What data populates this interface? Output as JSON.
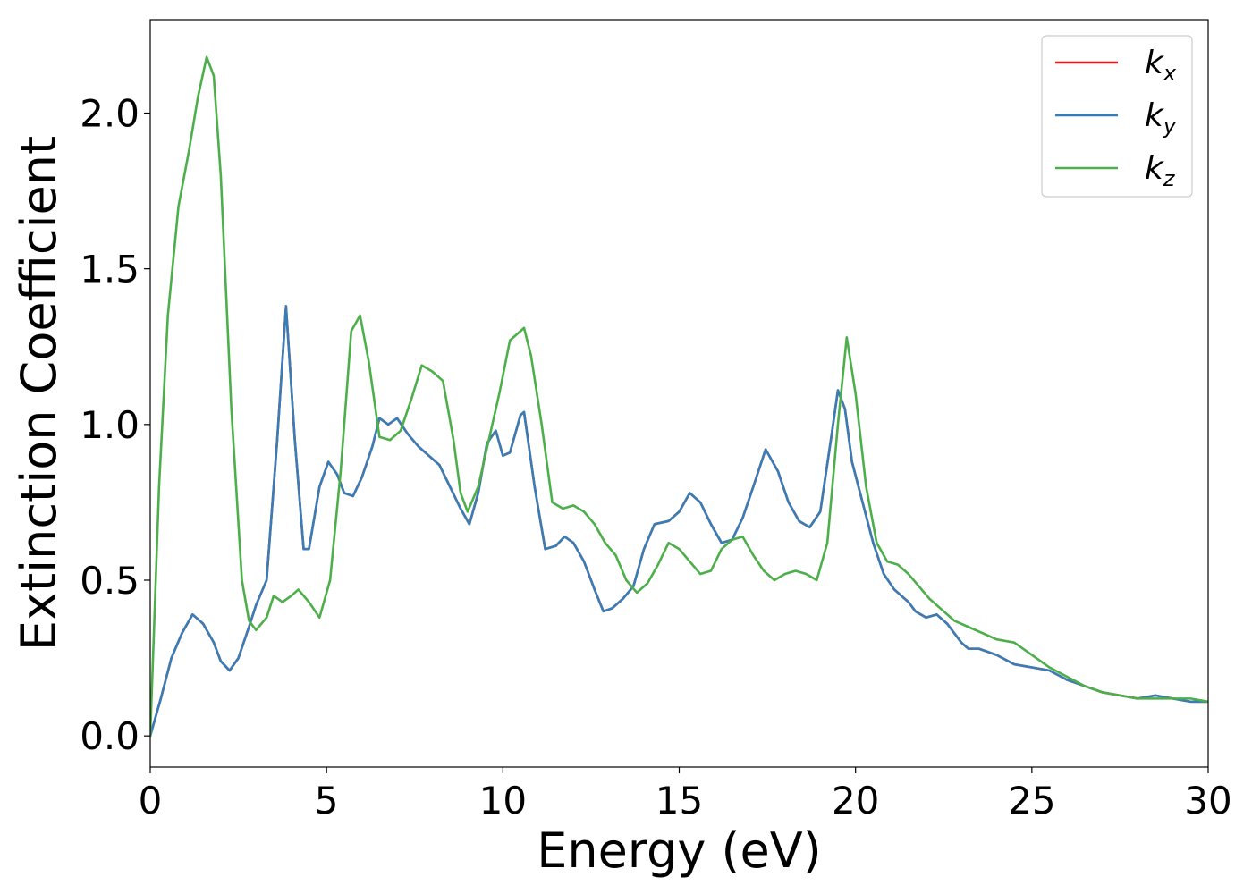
{
  "chart_data": {
    "type": "line",
    "title": "",
    "xlabel": "Energy (eV)",
    "ylabel": "Extinction Coefficient",
    "xlim": [
      0,
      30
    ],
    "ylim": [
      -0.1,
      2.3
    ],
    "xticks": [
      0,
      5,
      10,
      15,
      20,
      25,
      30
    ],
    "xtick_labels": [
      "0",
      "5",
      "10",
      "15",
      "20",
      "25",
      "30"
    ],
    "yticks": [
      0.0,
      0.5,
      1.0,
      1.5,
      2.0
    ],
    "ytick_labels": [
      "0.0",
      "0.5",
      "1.0",
      "1.5",
      "2.0"
    ],
    "grid": false,
    "legend_position": "top-right",
    "series": [
      {
        "name": "k_x",
        "label_base": "k",
        "label_sub": "x",
        "color": "#e41a1c",
        "x": [
          0,
          0.3,
          0.6,
          0.9,
          1.2,
          1.5,
          1.8,
          2.0,
          2.25,
          2.5,
          2.8,
          3.0,
          3.3,
          3.6,
          3.85,
          4.1,
          4.35,
          4.5,
          4.8,
          5.05,
          5.3,
          5.5,
          5.75,
          6.0,
          6.3,
          6.5,
          6.75,
          7.0,
          7.3,
          7.6,
          7.9,
          8.2,
          8.5,
          8.8,
          9.05,
          9.3,
          9.55,
          9.8,
          10.0,
          10.2,
          10.5,
          10.6,
          10.9,
          11.2,
          11.5,
          11.75,
          12.0,
          12.3,
          12.6,
          12.85,
          13.1,
          13.4,
          13.7,
          14.0,
          14.3,
          14.7,
          15.0,
          15.3,
          15.6,
          15.9,
          16.2,
          16.5,
          16.8,
          17.1,
          17.45,
          17.8,
          18.1,
          18.4,
          18.7,
          19.0,
          19.3,
          19.5,
          19.7,
          19.9,
          20.2,
          20.5,
          20.8,
          21.1,
          21.5,
          21.7,
          22.0,
          22.3,
          22.6,
          23.0,
          23.2,
          23.5,
          24.0,
          24.5,
          25.0,
          25.5,
          26.0,
          26.5,
          27.0,
          27.5,
          28.0,
          28.5,
          29.0,
          29.5,
          30.0
        ],
        "y": [
          0.0,
          0.12,
          0.25,
          0.33,
          0.39,
          0.36,
          0.3,
          0.24,
          0.21,
          0.25,
          0.35,
          0.42,
          0.5,
          0.95,
          1.38,
          0.95,
          0.6,
          0.6,
          0.8,
          0.88,
          0.84,
          0.78,
          0.77,
          0.83,
          0.93,
          1.02,
          1.0,
          1.02,
          0.97,
          0.93,
          0.9,
          0.87,
          0.8,
          0.73,
          0.68,
          0.78,
          0.94,
          0.98,
          0.9,
          0.91,
          1.03,
          1.04,
          0.8,
          0.6,
          0.61,
          0.64,
          0.62,
          0.56,
          0.47,
          0.4,
          0.41,
          0.44,
          0.48,
          0.6,
          0.68,
          0.69,
          0.72,
          0.78,
          0.75,
          0.68,
          0.62,
          0.63,
          0.7,
          0.8,
          0.92,
          0.85,
          0.75,
          0.69,
          0.67,
          0.72,
          0.95,
          1.11,
          1.05,
          0.88,
          0.75,
          0.62,
          0.52,
          0.47,
          0.43,
          0.4,
          0.38,
          0.39,
          0.36,
          0.3,
          0.28,
          0.28,
          0.26,
          0.23,
          0.22,
          0.21,
          0.18,
          0.16,
          0.14,
          0.13,
          0.12,
          0.13,
          0.12,
          0.11,
          0.11
        ]
      },
      {
        "name": "k_y",
        "label_base": "k",
        "label_sub": "y",
        "color": "#377eb8",
        "x": [
          0,
          0.3,
          0.6,
          0.9,
          1.2,
          1.5,
          1.8,
          2.0,
          2.25,
          2.5,
          2.8,
          3.0,
          3.3,
          3.6,
          3.85,
          4.1,
          4.35,
          4.5,
          4.8,
          5.05,
          5.3,
          5.5,
          5.75,
          6.0,
          6.3,
          6.5,
          6.75,
          7.0,
          7.3,
          7.6,
          7.9,
          8.2,
          8.5,
          8.8,
          9.05,
          9.3,
          9.55,
          9.8,
          10.0,
          10.2,
          10.5,
          10.6,
          10.9,
          11.2,
          11.5,
          11.75,
          12.0,
          12.3,
          12.6,
          12.85,
          13.1,
          13.4,
          13.7,
          14.0,
          14.3,
          14.7,
          15.0,
          15.3,
          15.6,
          15.9,
          16.2,
          16.5,
          16.8,
          17.1,
          17.45,
          17.8,
          18.1,
          18.4,
          18.7,
          19.0,
          19.3,
          19.5,
          19.7,
          19.9,
          20.2,
          20.5,
          20.8,
          21.1,
          21.5,
          21.7,
          22.0,
          22.3,
          22.6,
          23.0,
          23.2,
          23.5,
          24.0,
          24.5,
          25.0,
          25.5,
          26.0,
          26.5,
          27.0,
          27.5,
          28.0,
          28.5,
          29.0,
          29.5,
          30.0
        ],
        "y": [
          0.0,
          0.12,
          0.25,
          0.33,
          0.39,
          0.36,
          0.3,
          0.24,
          0.21,
          0.25,
          0.35,
          0.42,
          0.5,
          0.95,
          1.38,
          0.95,
          0.6,
          0.6,
          0.8,
          0.88,
          0.84,
          0.78,
          0.77,
          0.83,
          0.93,
          1.02,
          1.0,
          1.02,
          0.97,
          0.93,
          0.9,
          0.87,
          0.8,
          0.73,
          0.68,
          0.78,
          0.94,
          0.98,
          0.9,
          0.91,
          1.03,
          1.04,
          0.8,
          0.6,
          0.61,
          0.64,
          0.62,
          0.56,
          0.47,
          0.4,
          0.41,
          0.44,
          0.48,
          0.6,
          0.68,
          0.69,
          0.72,
          0.78,
          0.75,
          0.68,
          0.62,
          0.63,
          0.7,
          0.8,
          0.92,
          0.85,
          0.75,
          0.69,
          0.67,
          0.72,
          0.95,
          1.11,
          1.05,
          0.88,
          0.75,
          0.62,
          0.52,
          0.47,
          0.43,
          0.4,
          0.38,
          0.39,
          0.36,
          0.3,
          0.28,
          0.28,
          0.26,
          0.23,
          0.22,
          0.21,
          0.18,
          0.16,
          0.14,
          0.13,
          0.12,
          0.13,
          0.12,
          0.11,
          0.11
        ]
      },
      {
        "name": "k_z",
        "label_base": "k",
        "label_sub": "z",
        "color": "#4daf4a",
        "x": [
          0,
          0.25,
          0.5,
          0.8,
          1.1,
          1.35,
          1.6,
          1.8,
          2.0,
          2.3,
          2.6,
          2.8,
          3.0,
          3.3,
          3.5,
          3.75,
          4.0,
          4.2,
          4.5,
          4.8,
          5.1,
          5.4,
          5.7,
          5.95,
          6.2,
          6.5,
          6.8,
          7.1,
          7.4,
          7.7,
          8.0,
          8.3,
          8.6,
          8.8,
          9.0,
          9.3,
          9.6,
          9.9,
          10.2,
          10.6,
          10.8,
          11.1,
          11.4,
          11.7,
          12.0,
          12.3,
          12.6,
          12.9,
          13.2,
          13.5,
          13.8,
          14.1,
          14.4,
          14.7,
          15.0,
          15.3,
          15.6,
          15.9,
          16.2,
          16.5,
          16.8,
          17.1,
          17.4,
          17.7,
          18.0,
          18.3,
          18.6,
          18.9,
          19.2,
          19.5,
          19.75,
          20.0,
          20.3,
          20.6,
          20.9,
          21.2,
          21.5,
          21.8,
          22.1,
          22.5,
          22.8,
          23.2,
          23.6,
          24.0,
          24.5,
          25.0,
          25.5,
          26.0,
          26.5,
          27.0,
          27.5,
          28.0,
          28.5,
          29.0,
          29.5,
          30.0
        ],
        "y": [
          0.0,
          0.8,
          1.35,
          1.7,
          1.88,
          2.05,
          2.18,
          2.12,
          1.8,
          1.05,
          0.5,
          0.37,
          0.34,
          0.38,
          0.45,
          0.43,
          0.45,
          0.47,
          0.43,
          0.38,
          0.5,
          0.85,
          1.3,
          1.35,
          1.2,
          0.96,
          0.95,
          0.98,
          1.08,
          1.19,
          1.17,
          1.14,
          0.95,
          0.78,
          0.72,
          0.8,
          0.95,
          1.1,
          1.27,
          1.31,
          1.22,
          1.0,
          0.75,
          0.73,
          0.74,
          0.72,
          0.68,
          0.62,
          0.58,
          0.5,
          0.46,
          0.49,
          0.55,
          0.62,
          0.6,
          0.56,
          0.52,
          0.53,
          0.6,
          0.63,
          0.64,
          0.58,
          0.53,
          0.5,
          0.52,
          0.53,
          0.52,
          0.5,
          0.62,
          1.0,
          1.28,
          1.1,
          0.8,
          0.62,
          0.56,
          0.55,
          0.52,
          0.48,
          0.44,
          0.4,
          0.37,
          0.35,
          0.33,
          0.31,
          0.3,
          0.26,
          0.22,
          0.19,
          0.16,
          0.14,
          0.13,
          0.12,
          0.12,
          0.12,
          0.12,
          0.11
        ]
      }
    ]
  }
}
